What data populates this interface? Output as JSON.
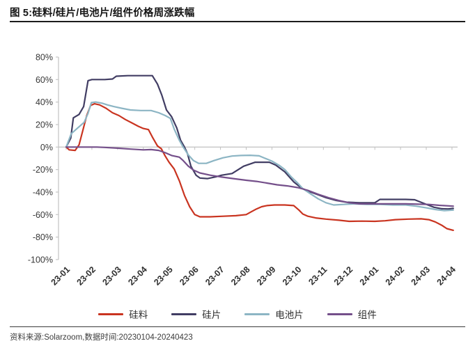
{
  "header": {
    "title": "图 5:硅料/硅片/电池片/组件价格周涨跌幅"
  },
  "footer": {
    "source": "资料来源:Solarzoom,数据时间:20230104-20240423"
  },
  "chart_data": {
    "type": "line",
    "title": "硅料/硅片/电池片/组件价格周涨跌幅",
    "x_unit": "month_index_from_23-01_weekly_data",
    "y_unit": "%",
    "ylim": [
      -100,
      80
    ],
    "y_ticks": [
      80,
      60,
      40,
      20,
      0,
      -20,
      -40,
      -60,
      -80,
      -100
    ],
    "x_tick_labels": [
      "23-01",
      "23-02",
      "23-03",
      "23-04",
      "23-05",
      "23-06",
      "23-07",
      "23-08",
      "23-09",
      "23-10",
      "23-11",
      "23-12",
      "24-01",
      "24-02",
      "24-03",
      "24-04"
    ],
    "grid": "zero-line-only",
    "legend_position": "bottom",
    "axis_color": "#c6c6c6",
    "series": [
      {
        "name": "硅料",
        "key": "silicon-material",
        "color": "#c93420",
        "points": [
          [
            0,
            0
          ],
          [
            0.12,
            -2.5
          ],
          [
            0.35,
            -3
          ],
          [
            0.5,
            2
          ],
          [
            0.65,
            15
          ],
          [
            0.8,
            28
          ],
          [
            0.95,
            37
          ],
          [
            1.1,
            38.5
          ],
          [
            1.3,
            37.5
          ],
          [
            1.55,
            34.5
          ],
          [
            1.8,
            30.5
          ],
          [
            2.05,
            28
          ],
          [
            2.3,
            24.5
          ],
          [
            2.55,
            21.5
          ],
          [
            2.8,
            18.5
          ],
          [
            3.0,
            16.5
          ],
          [
            3.2,
            15.5
          ],
          [
            3.35,
            9
          ],
          [
            3.55,
            1
          ],
          [
            3.7,
            -1.5
          ],
          [
            3.85,
            -8
          ],
          [
            4.0,
            -13.5
          ],
          [
            4.2,
            -19.5
          ],
          [
            4.4,
            -30
          ],
          [
            4.6,
            -43
          ],
          [
            4.8,
            -53
          ],
          [
            5.0,
            -60
          ],
          [
            5.2,
            -62
          ],
          [
            5.6,
            -62
          ],
          [
            6.1,
            -61.5
          ],
          [
            6.6,
            -61
          ],
          [
            7.0,
            -60
          ],
          [
            7.2,
            -57.5
          ],
          [
            7.4,
            -55
          ],
          [
            7.6,
            -53
          ],
          [
            7.8,
            -52
          ],
          [
            8.1,
            -51.5
          ],
          [
            8.5,
            -51.5
          ],
          [
            8.85,
            -52
          ],
          [
            9.05,
            -56
          ],
          [
            9.2,
            -59.5
          ],
          [
            9.4,
            -61.5
          ],
          [
            9.7,
            -63
          ],
          [
            10.1,
            -64
          ],
          [
            10.6,
            -65
          ],
          [
            11.0,
            -66
          ],
          [
            11.5,
            -65.8
          ],
          [
            12.0,
            -66
          ],
          [
            12.4,
            -65.5
          ],
          [
            12.8,
            -64.5
          ],
          [
            13.3,
            -64
          ],
          [
            13.8,
            -63.8
          ],
          [
            14.1,
            -64.5
          ],
          [
            14.35,
            -66.5
          ],
          [
            14.6,
            -69.5
          ],
          [
            14.8,
            -72.5
          ],
          [
            15.05,
            -74
          ]
        ]
      },
      {
        "name": "硅片",
        "key": "silicon-wafer",
        "color": "#413d63",
        "points": [
          [
            0,
            0
          ],
          [
            0.18,
            8
          ],
          [
            0.28,
            26
          ],
          [
            0.5,
            29
          ],
          [
            0.68,
            36
          ],
          [
            0.85,
            59
          ],
          [
            1.0,
            60
          ],
          [
            1.5,
            60
          ],
          [
            1.8,
            60.5
          ],
          [
            1.95,
            63
          ],
          [
            2.4,
            63.5
          ],
          [
            2.9,
            63.5
          ],
          [
            3.35,
            63.5
          ],
          [
            3.55,
            56
          ],
          [
            3.72,
            46
          ],
          [
            3.9,
            33
          ],
          [
            4.1,
            27
          ],
          [
            4.3,
            17
          ],
          [
            4.45,
            6
          ],
          [
            4.6,
            0
          ],
          [
            4.72,
            -6
          ],
          [
            4.85,
            -17
          ],
          [
            5.05,
            -25
          ],
          [
            5.2,
            -27.5
          ],
          [
            5.5,
            -28
          ],
          [
            5.82,
            -26.5
          ],
          [
            6.05,
            -25
          ],
          [
            6.45,
            -23.5
          ],
          [
            6.9,
            -17
          ],
          [
            7.35,
            -13.5
          ],
          [
            7.9,
            -13.5
          ],
          [
            8.15,
            -16
          ],
          [
            8.5,
            -22
          ],
          [
            8.85,
            -31
          ],
          [
            9.15,
            -36.5
          ],
          [
            9.45,
            -39.5
          ],
          [
            9.75,
            -42
          ],
          [
            10.1,
            -45
          ],
          [
            10.5,
            -47.5
          ],
          [
            10.9,
            -49
          ],
          [
            11.4,
            -49.5
          ],
          [
            12.0,
            -49.5
          ],
          [
            12.2,
            -46.5
          ],
          [
            12.7,
            -46.5
          ],
          [
            13.2,
            -46.5
          ],
          [
            13.55,
            -46.8
          ],
          [
            13.95,
            -50.5
          ],
          [
            14.3,
            -53.5
          ],
          [
            14.6,
            -54.8
          ],
          [
            14.85,
            -55
          ],
          [
            15.05,
            -54.5
          ]
        ]
      },
      {
        "name": "电池片",
        "key": "solar-cell",
        "color": "#8cb5c4",
        "points": [
          [
            0,
            0
          ],
          [
            0.2,
            12
          ],
          [
            0.45,
            17
          ],
          [
            0.7,
            22
          ],
          [
            0.85,
            30
          ],
          [
            0.98,
            39.5
          ],
          [
            1.15,
            40
          ],
          [
            1.4,
            39
          ],
          [
            1.6,
            37.5
          ],
          [
            1.85,
            36
          ],
          [
            2.15,
            34.5
          ],
          [
            2.5,
            33
          ],
          [
            2.9,
            32.5
          ],
          [
            3.3,
            32.5
          ],
          [
            3.6,
            30.5
          ],
          [
            3.85,
            28
          ],
          [
            4.05,
            25.5
          ],
          [
            4.2,
            16
          ],
          [
            4.4,
            6
          ],
          [
            4.55,
            0
          ],
          [
            4.75,
            -7
          ],
          [
            4.95,
            -12
          ],
          [
            5.15,
            -14.5
          ],
          [
            5.45,
            -14.5
          ],
          [
            5.75,
            -12
          ],
          [
            6.1,
            -9.5
          ],
          [
            6.45,
            -8
          ],
          [
            6.8,
            -7.5
          ],
          [
            7.15,
            -7.3
          ],
          [
            7.5,
            -7.8
          ],
          [
            8.0,
            -12.5
          ],
          [
            8.3,
            -16.5
          ],
          [
            8.5,
            -20
          ],
          [
            8.75,
            -26.5
          ],
          [
            9.0,
            -32
          ],
          [
            9.2,
            -37
          ],
          [
            9.5,
            -41.5
          ],
          [
            9.8,
            -46
          ],
          [
            10.1,
            -49.5
          ],
          [
            10.4,
            -51.5
          ],
          [
            10.8,
            -51
          ],
          [
            11.2,
            -50.5
          ],
          [
            11.7,
            -51
          ],
          [
            12.2,
            -51
          ],
          [
            12.7,
            -51.5
          ],
          [
            13.2,
            -51.5
          ],
          [
            13.6,
            -52.5
          ],
          [
            14.0,
            -54
          ],
          [
            14.35,
            -55.5
          ],
          [
            14.7,
            -56.5
          ],
          [
            15.05,
            -56
          ]
        ]
      },
      {
        "name": "组件",
        "key": "module",
        "color": "#744f8a",
        "points": [
          [
            0,
            0
          ],
          [
            0.6,
            0
          ],
          [
            1.2,
            0
          ],
          [
            1.5,
            -0.3
          ],
          [
            2.0,
            -1
          ],
          [
            2.5,
            -1.8
          ],
          [
            3.0,
            -2.5
          ],
          [
            3.3,
            -2.2
          ],
          [
            3.6,
            -3
          ],
          [
            3.85,
            -5
          ],
          [
            4.1,
            -7.5
          ],
          [
            4.4,
            -9
          ],
          [
            4.55,
            -12
          ],
          [
            4.75,
            -17
          ],
          [
            4.95,
            -20.5
          ],
          [
            5.2,
            -23
          ],
          [
            5.6,
            -25
          ],
          [
            6.0,
            -26.5
          ],
          [
            6.5,
            -28
          ],
          [
            7.0,
            -29.5
          ],
          [
            7.4,
            -30.5
          ],
          [
            7.8,
            -32
          ],
          [
            8.2,
            -33.5
          ],
          [
            8.6,
            -34.5
          ],
          [
            9.0,
            -36
          ],
          [
            9.4,
            -38.5
          ],
          [
            9.8,
            -42
          ],
          [
            10.2,
            -45
          ],
          [
            10.6,
            -47.5
          ],
          [
            11.0,
            -49.5
          ],
          [
            11.4,
            -50.5
          ],
          [
            12.0,
            -50.5
          ],
          [
            12.6,
            -50.5
          ],
          [
            13.2,
            -50.5
          ],
          [
            13.7,
            -50.8
          ],
          [
            14.1,
            -51
          ],
          [
            14.5,
            -51.8
          ],
          [
            15.05,
            -52.5
          ]
        ]
      }
    ]
  }
}
